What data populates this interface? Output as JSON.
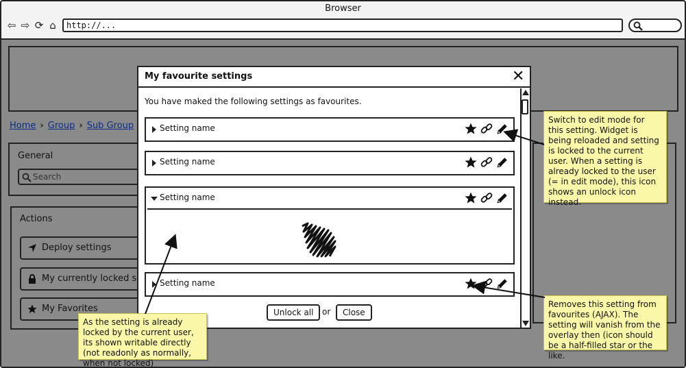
{
  "browser": {
    "title": "Browser",
    "url": "http://..."
  },
  "page": {
    "breadcrumbs": [
      "Home",
      "Group",
      "Sub Group"
    ],
    "general_title": "General",
    "search_placeholder": "Search",
    "actions_title": "Actions",
    "actions": [
      "Deploy settings",
      "My currently locked settings",
      "My Favorites"
    ]
  },
  "modal": {
    "title": "My favourite settings",
    "close_label": "X",
    "intro": "You have maked the following settings as favourites.",
    "rows": [
      {
        "label": "Setting name",
        "expanded": false
      },
      {
        "label": "Setting name",
        "expanded": false
      },
      {
        "label": "Setting name",
        "expanded": true
      },
      {
        "label": "Setting name",
        "expanded": false
      }
    ],
    "unlock_all": "Unlock all",
    "or": "or",
    "close": "Close"
  },
  "notes": {
    "edit_mode": "Switch to edit mode for this setting. Widget is being reloaded and setting is locked to the current user. When a setting is already locked to the user (= in edit mode), this icon shows an unlock icon instead.",
    "remove_fav": "Removes this setting from favourites (AJAX). The setting will vanish from the overlay then (icon should be a half-filled star or the like.",
    "writable": "As the setting is already locked by the current user, its shown writable directly (not readonly as normally, when not locked)"
  },
  "colors": {
    "page_bg": "#8a8a8a",
    "note_bg": "#fbf7a8",
    "link": "#0a2d8a"
  },
  "icons": [
    "back-icon",
    "forward-icon",
    "reload-icon",
    "home-icon",
    "search-icon",
    "star-icon",
    "link-icon",
    "pencil-icon",
    "paper-plane-icon",
    "lock-icon",
    "close-icon"
  ]
}
